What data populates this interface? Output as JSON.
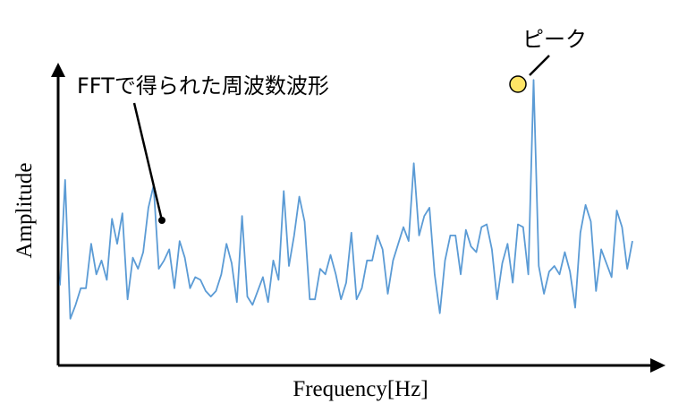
{
  "chart_data": {
    "type": "line",
    "xlabel": "Frequency[Hz]",
    "ylabel": "Amplitude",
    "ylim": [
      0,
      1
    ],
    "grid": false,
    "line_color": "#5b9bd5",
    "axis_color": "#000000",
    "marker_fill": "#ffe566",
    "annotations": {
      "waveform_label": "FFTで得られた周波数波形",
      "peak_label": "ピーク"
    },
    "values": [
      0.23,
      0.61,
      0.11,
      0.16,
      0.22,
      0.22,
      0.38,
      0.27,
      0.32,
      0.25,
      0.47,
      0.38,
      0.49,
      0.18,
      0.33,
      0.29,
      0.35,
      0.51,
      0.59,
      0.29,
      0.32,
      0.36,
      0.22,
      0.39,
      0.33,
      0.22,
      0.26,
      0.25,
      0.21,
      0.19,
      0.21,
      0.27,
      0.38,
      0.31,
      0.17,
      0.48,
      0.19,
      0.16,
      0.21,
      0.26,
      0.17,
      0.32,
      0.25,
      0.57,
      0.3,
      0.41,
      0.55,
      0.46,
      0.18,
      0.18,
      0.29,
      0.27,
      0.34,
      0.27,
      0.18,
      0.24,
      0.42,
      0.18,
      0.22,
      0.32,
      0.32,
      0.41,
      0.36,
      0.2,
      0.32,
      0.38,
      0.44,
      0.39,
      0.67,
      0.41,
      0.48,
      0.51,
      0.27,
      0.13,
      0.32,
      0.41,
      0.41,
      0.27,
      0.43,
      0.37,
      0.35,
      0.44,
      0.45,
      0.36,
      0.18,
      0.31,
      0.38,
      0.24,
      0.45,
      0.44,
      0.27,
      0.97,
      0.3,
      0.2,
      0.28,
      0.3,
      0.27,
      0.35,
      0.28,
      0.15,
      0.42,
      0.52,
      0.46,
      0.21,
      0.36,
      0.31,
      0.26,
      0.5,
      0.44,
      0.29,
      0.39
    ]
  }
}
